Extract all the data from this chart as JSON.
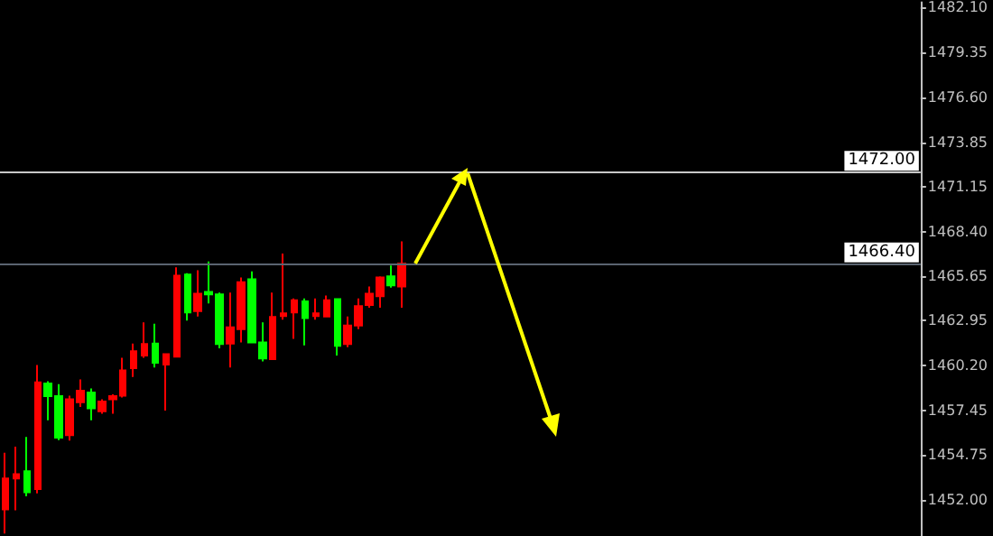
{
  "chart_data": {
    "type": "candlestick",
    "categories": [
      null,
      null,
      null,
      null,
      null,
      null,
      null,
      null,
      null,
      null,
      null,
      null,
      null,
      null,
      null,
      null,
      null,
      null,
      null,
      null,
      null,
      null,
      null,
      null,
      null,
      null,
      null,
      null,
      null,
      null,
      null,
      null,
      null,
      null,
      null,
      null,
      null,
      null,
      null,
      null,
      null,
      null,
      null,
      null,
      null,
      null,
      null,
      null,
      null,
      null,
      null,
      null,
      null,
      null,
      null,
      null,
      null,
      null,
      null,
      null,
      null,
      null,
      null,
      null,
      null,
      null,
      null,
      null,
      null,
      null,
      null,
      null,
      null,
      null,
      null,
      null,
      null,
      null,
      null,
      null,
      null,
      null,
      null,
      null,
      null,
      null
    ],
    "ohlc": [
      [
        1451.42,
        1454.89,
        1449.95,
        1453.32
      ],
      [
        1453.32,
        1455.26,
        1451.37,
        1453.57
      ],
      [
        1453.76,
        1455.85,
        1452.22,
        1452.47
      ],
      [
        1452.66,
        1460.24,
        1452.4,
        1459.18
      ],
      [
        1459.11,
        1459.25,
        1456.87,
        1458.34
      ],
      [
        1458.34,
        1459.07,
        1455.66,
        1455.81
      ],
      [
        1455.96,
        1458.37,
        1455.63,
        1458.15
      ],
      [
        1457.97,
        1459.36,
        1457.68,
        1458.67
      ],
      [
        1458.56,
        1458.81,
        1456.87,
        1457.6
      ],
      [
        1457.42,
        1458.15,
        1457.27,
        1458.01
      ],
      [
        1458.15,
        1458.45,
        1457.27,
        1458.34
      ],
      [
        1458.37,
        1460.68,
        1458.26,
        1459.91
      ],
      [
        1460.05,
        1461.56,
        1459.52,
        1461.09
      ],
      [
        1460.82,
        1462.85,
        1460.68,
        1461.52
      ],
      [
        1461.56,
        1462.77,
        1460.09,
        1460.38
      ],
      [
        1460.27,
        1460.9,
        1457.46,
        1460.9
      ],
      [
        1460.76,
        1466.21,
        1460.76,
        1465.7
      ],
      [
        1465.77,
        1465.85,
        1462.96,
        1463.46
      ],
      [
        1463.54,
        1466.03,
        1463.21,
        1464.6
      ],
      [
        1464.71,
        1466.57,
        1464.01,
        1464.56
      ],
      [
        1464.56,
        1464.67,
        1461.26,
        1461.52
      ],
      [
        1461.56,
        1464.67,
        1460.09,
        1462.55
      ],
      [
        1462.44,
        1465.59,
        1461.63,
        1465.3
      ],
      [
        1465.48,
        1465.96,
        1461.63,
        1461.63
      ],
      [
        1461.63,
        1462.85,
        1460.46,
        1460.64
      ],
      [
        1460.6,
        1464.67,
        1460.6,
        1463.18
      ],
      [
        1463.24,
        1467.05,
        1463.02,
        1463.4
      ],
      [
        1463.46,
        1464.31,
        1461.85,
        1464.2
      ],
      [
        1464.13,
        1464.31,
        1461.45,
        1463.11
      ],
      [
        1463.24,
        1464.31,
        1463.02,
        1463.4
      ],
      [
        1463.21,
        1464.49,
        1463.18,
        1464.2
      ],
      [
        1464.27,
        1464.27,
        1460.82,
        1461.41
      ],
      [
        1461.52,
        1463.21,
        1461.34,
        1462.66
      ],
      [
        1462.66,
        1464.31,
        1462.44,
        1463.84
      ],
      [
        1463.91,
        1465.04,
        1463.75,
        1464.6
      ],
      [
        1464.45,
        1465.66,
        1463.75,
        1465.59
      ],
      [
        1465.66,
        1466.32,
        1464.97,
        1465.11
      ],
      [
        1465.04,
        1467.8,
        1463.75,
        1466.43
      ],
      null,
      null,
      null,
      null,
      null,
      null,
      null,
      null,
      null,
      null,
      null,
      null,
      null,
      null,
      null,
      null,
      null,
      null,
      null,
      null,
      null,
      null,
      null,
      null,
      null,
      null,
      null,
      null,
      null,
      null,
      null,
      null,
      null,
      null,
      null,
      null,
      null,
      null,
      null,
      null,
      null,
      null,
      null,
      null,
      null,
      null,
      null,
      null
    ],
    "colors": [
      "#ff0000",
      "#ff0000",
      "#00ff00",
      "#ff0000",
      "#00ff00",
      "#00ff00",
      "#ff0000",
      "#ff0000",
      "#00ff00",
      "#ff0000",
      "#ff0000",
      "#ff0000",
      "#ff0000",
      "#ff0000",
      "#00ff00",
      "#ff0000",
      "#ff0000",
      "#00ff00",
      "#ff0000",
      "#00ff00",
      "#00ff00",
      "#ff0000",
      "#ff0000",
      "#00ff00",
      "#00ff00",
      "#ff0000",
      "#ff0000",
      "#ff0000",
      "#00ff00",
      "#ff0000",
      "#ff0000",
      "#00ff00",
      "#ff0000",
      "#ff0000",
      "#ff0000",
      "#ff0000",
      "#00ff00",
      "#ff0000",
      null,
      null,
      null,
      null,
      null,
      null,
      null,
      null,
      null,
      null,
      null,
      null,
      null,
      null,
      null,
      null,
      null,
      null,
      null,
      null,
      null,
      null,
      null,
      null,
      null,
      null,
      null,
      null,
      null,
      null,
      null,
      null,
      null,
      null,
      null,
      null,
      null,
      null,
      null,
      null,
      null,
      null,
      null,
      null,
      null,
      null,
      null,
      null
    ],
    "ylim": [
      1449.8,
      1482.4
    ],
    "yticks": [
      {
        "value": 1452,
        "label": "1452.00"
      },
      {
        "value": 1454.75,
        "label": "1454.75"
      },
      {
        "value": 1457.45,
        "label": "1457.45"
      },
      {
        "value": 1460.2,
        "label": "1460.20"
      },
      {
        "value": 1462.95,
        "label": "1462.95"
      },
      {
        "value": 1465.65,
        "label": "1465.65"
      },
      {
        "value": 1468.4,
        "label": "1468.40"
      },
      {
        "value": 1471.15,
        "label": "1471.15"
      },
      {
        "value": 1473.85,
        "label": "1473.85"
      },
      {
        "value": 1476.6,
        "label": "1476.60"
      },
      {
        "value": 1479.35,
        "label": "1479.35"
      },
      {
        "value": 1482.1,
        "label": "1482.10"
      }
    ],
    "ref_lines": [
      {
        "axis": "y",
        "value": 1472,
        "label": "1472.00",
        "color": "#c8c8c8"
      },
      {
        "axis": "y",
        "value": 1466.4,
        "label": "1466.40",
        "color": "#5a6470"
      }
    ],
    "tick_labels": "y",
    "grid": false
  }
}
